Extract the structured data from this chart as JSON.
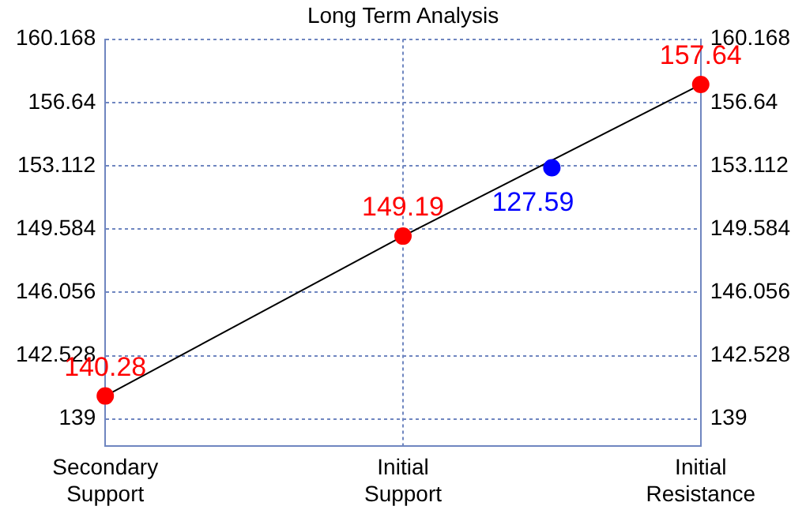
{
  "chart_data": {
    "type": "line",
    "title": "Long Term Analysis",
    "categories": [
      "Secondary Support",
      null,
      "Initial Support",
      null,
      "Initial Resistance"
    ],
    "ylim": [
      137.5,
      160.168
    ],
    "yticks": [
      139,
      142.528,
      146.056,
      149.584,
      153.112,
      156.64,
      160.168
    ],
    "y2lim": [
      137.5,
      160.168
    ],
    "y2ticks": [
      139,
      142.528,
      146.056,
      149.584,
      153.112,
      156.64,
      160.168
    ],
    "grid": true,
    "line_style": "solid",
    "series": [
      {
        "type": "line",
        "marker": "none",
        "color": "#000000",
        "values": [
          140.28,
          null,
          149.19,
          null,
          157.64
        ]
      },
      {
        "type": "scatter",
        "marker": "circle",
        "color": "#ff0000",
        "values": [
          140.28,
          null,
          149.19,
          null,
          157.64
        ],
        "value_labels": [
          "140.28",
          null,
          "149.19",
          null,
          "157.64"
        ]
      },
      {
        "type": "scatter",
        "marker": "circle",
        "color": "#0000ff",
        "values": [
          null,
          null,
          null,
          153.0,
          null
        ]
      }
    ],
    "annotations": [
      "127.59"
    ]
  }
}
